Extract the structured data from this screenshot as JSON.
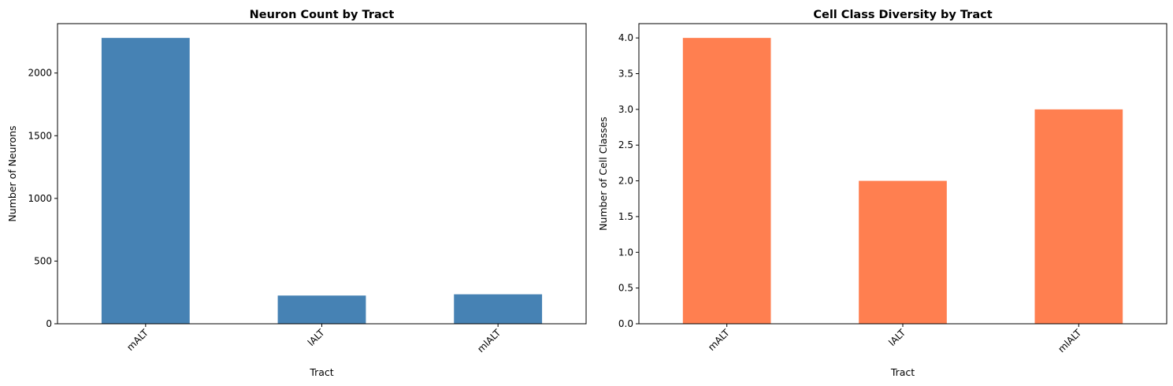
{
  "chart_data": [
    {
      "type": "bar",
      "title": "Neuron Count by Tract",
      "xlabel": "Tract",
      "ylabel": "Number of Neurons",
      "categories": [
        "mALT",
        "lALT",
        "mlALT"
      ],
      "values": [
        2280,
        225,
        235
      ],
      "ylim": [
        0,
        2394
      ],
      "yticks": [
        0,
        500,
        1000,
        1500,
        2000
      ],
      "ytick_labels": [
        "0",
        "500",
        "1000",
        "1500",
        "2000"
      ],
      "color": "#4682b4",
      "grid": false,
      "legend": "none"
    },
    {
      "type": "bar",
      "title": "Cell Class Diversity by Tract",
      "xlabel": "Tract",
      "ylabel": "Number of Cell Classes",
      "categories": [
        "mALT",
        "lALT",
        "mlALT"
      ],
      "values": [
        4,
        2,
        3
      ],
      "ylim": [
        0,
        4.2
      ],
      "yticks": [
        0,
        0.5,
        1,
        1.5,
        2,
        2.5,
        3,
        3.5,
        4
      ],
      "ytick_labels": [
        "0.0",
        "0.5",
        "1.0",
        "1.5",
        "2.0",
        "2.5",
        "3.0",
        "3.5",
        "4.0"
      ],
      "color": "#ff7f50",
      "grid": false,
      "legend": "none"
    }
  ]
}
